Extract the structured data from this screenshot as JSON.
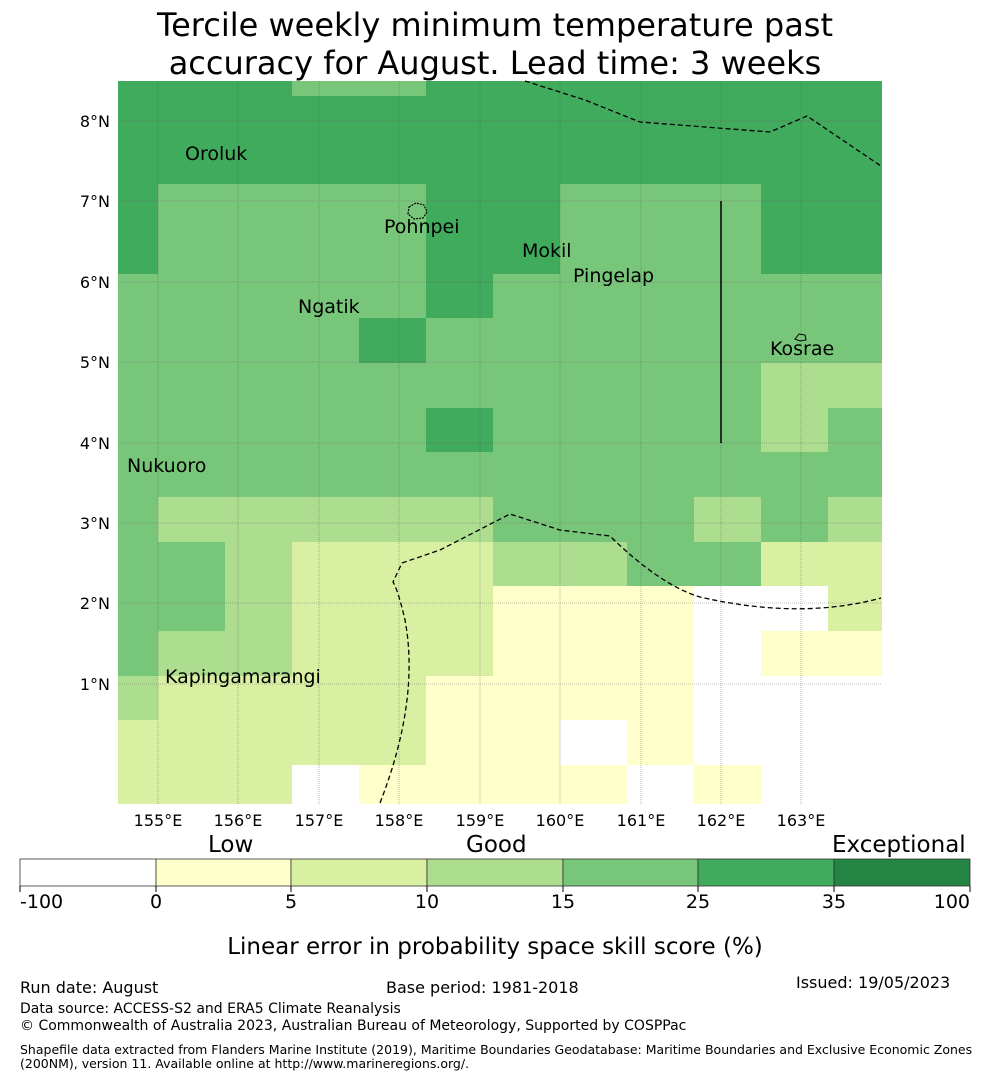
{
  "title_line1": "Tercile weekly minimum temperature past",
  "title_line2": "accuracy for August. Lead time: 3 weeks",
  "map": {
    "lon_labels": [
      "155°E",
      "156°E",
      "157°E",
      "158°E",
      "159°E",
      "160°E",
      "161°E",
      "162°E",
      "163°E"
    ],
    "lat_labels": [
      "8°N",
      "7°N",
      "6°N",
      "5°N",
      "4°N",
      "3°N",
      "2°N",
      "1°N"
    ],
    "places": [
      "Oroluk",
      "Pohnpei",
      "Mokil",
      "Pingelap",
      "Ngatik",
      "Kosrae",
      "Nukuoro",
      "Kapingamarangi"
    ],
    "colors": {
      "c0": "#ffffff",
      "c1": "#ffffcc",
      "c2": "#d9f0a3",
      "c3": "#addd8e",
      "c4": "#78c679",
      "c5": "#41ab5d",
      "c6": "#238443"
    }
  },
  "legend": {
    "low": "Low",
    "good": "Good",
    "exceptional": "Exceptional",
    "ticks": [
      "-100",
      "0",
      "5",
      "10",
      "15",
      "25",
      "35",
      "100"
    ],
    "label": "Linear error in probability space skill score (%)"
  },
  "footer": {
    "run_date": "Run date: August",
    "base_period": "Base period: 1981-2018",
    "issued": "Issued: 19/05/2023",
    "data_source": "Data source: ACCESS-S2 and ERA5 Climate Reanalysis",
    "copyright": "© Commonwealth of Australia 2023, Australian Bureau of Meteorology, Supported by COSPPac",
    "shapefile_line1": "Shapefile data extracted from Flanders Marine Institute (2019), Maritime Boundaries Geodatabase: Maritime Boundaries and Exclusive Economic Zones",
    "shapefile_line2": "(200NM), version 11. Available online at http://www.marineregions.org/."
  }
}
